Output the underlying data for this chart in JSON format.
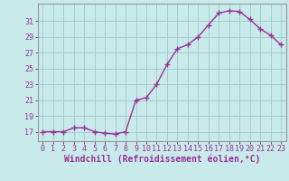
{
  "x": [
    0,
    1,
    2,
    3,
    4,
    5,
    6,
    7,
    8,
    9,
    10,
    11,
    12,
    13,
    14,
    15,
    16,
    17,
    18,
    19,
    20,
    21,
    22,
    23
  ],
  "y": [
    17,
    17,
    17,
    17.5,
    17.5,
    17,
    16.8,
    16.7,
    17,
    21,
    21.3,
    23,
    25.5,
    27.5,
    28,
    29,
    30.5,
    32,
    32.3,
    32.2,
    31.2,
    30,
    29.2,
    28.0
  ],
  "line_color": "#993399",
  "marker": "+",
  "marker_size": 4,
  "marker_lw": 1.0,
  "bg_color": "#c8eaea",
  "grid_color": "#a0c8c8",
  "xlabel": "Windchill (Refroidissement éolien,°C)",
  "ylabel_ticks": [
    17,
    19,
    21,
    23,
    25,
    27,
    29,
    31
  ],
  "ylim": [
    15.8,
    33.2
  ],
  "xlim": [
    -0.5,
    23.5
  ],
  "tick_color": "#993399",
  "tick_fontsize": 6,
  "xlabel_fontsize": 7,
  "spine_color": "#999999",
  "line_width": 1.0
}
